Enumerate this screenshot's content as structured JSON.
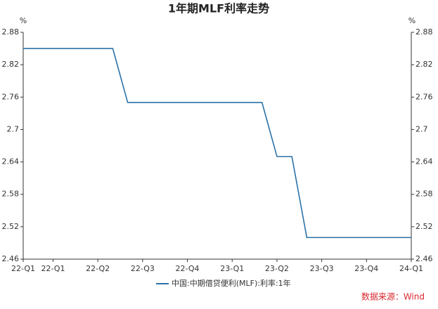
{
  "chart_data": {
    "type": "line",
    "title": "1年期MLF利率走势",
    "y_unit": "%",
    "source": "数据来源：Wind",
    "categories": [
      "22-Q1",
      null,
      "22-Q1",
      null,
      null,
      "22-Q2",
      null,
      null,
      "22-Q3",
      null,
      null,
      "22-Q4",
      null,
      null,
      "23-Q1",
      null,
      null,
      "23-Q2",
      null,
      null,
      "23-Q3",
      null,
      null,
      "23-Q4",
      null,
      null,
      "24-Q1"
    ],
    "series": [
      {
        "name": "中国:中期借贷便利(MLF):利率:1年",
        "color": "#2b72a8",
        "values": [
          2.85,
          2.85,
          2.85,
          2.85,
          2.85,
          2.85,
          2.85,
          2.75,
          2.75,
          2.75,
          2.75,
          2.75,
          2.75,
          2.75,
          2.75,
          2.75,
          2.75,
          2.65,
          2.65,
          2.5,
          2.5,
          2.5,
          2.5,
          2.5,
          2.5,
          2.5,
          2.5
        ]
      }
    ],
    "ylim": [
      2.46,
      2.88
    ],
    "yticks": [
      2.46,
      2.52,
      2.58,
      2.64,
      2.7,
      2.76,
      2.82,
      2.88
    ]
  }
}
